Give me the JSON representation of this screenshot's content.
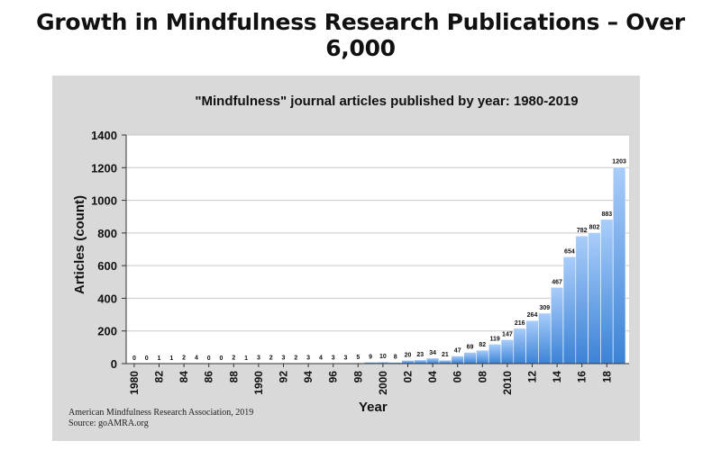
{
  "page_heading": "Growth in Mindfulness Research Publications – Over 6,000",
  "colors": {
    "panel_bg": "#d9d9d9",
    "plot_bg": "#ffffff",
    "bar_top": "#a9cdfa",
    "bar_bottom": "#3b82d6"
  },
  "chart_data": {
    "type": "bar",
    "title": "\"Mindfulness\" journal articles published by year: 1980-2019",
    "xlabel": "Year",
    "ylabel": "Articles (count)",
    "ylim": [
      0,
      1400
    ],
    "yticks": [
      "0",
      "200",
      "400",
      "600",
      "800",
      "1000",
      "1200",
      "1400"
    ],
    "grid": true,
    "categories": [
      1980,
      1981,
      1982,
      1983,
      1984,
      1985,
      1986,
      1987,
      1988,
      1989,
      1990,
      1991,
      1992,
      1993,
      1994,
      1995,
      1996,
      1997,
      1998,
      1999,
      2000,
      2001,
      2002,
      2003,
      2004,
      2005,
      2006,
      2007,
      2008,
      2009,
      2010,
      2011,
      2012,
      2013,
      2014,
      2015,
      2016,
      2017,
      2018,
      2019
    ],
    "values": [
      0,
      0,
      1,
      1,
      2,
      4,
      0,
      0,
      2,
      1,
      3,
      2,
      3,
      2,
      3,
      4,
      3,
      3,
      5,
      9,
      10,
      8,
      20,
      23,
      34,
      21,
      47,
      69,
      82,
      119,
      147,
      216,
      264,
      309,
      467,
      654,
      782,
      802,
      883,
      1203
    ],
    "xtick_labels": [
      "1980",
      "82",
      "84",
      "86",
      "88",
      "1990",
      "92",
      "94",
      "96",
      "98",
      "2000",
      "02",
      "04",
      "06",
      "08",
      "2010",
      "12",
      "14",
      "16",
      "18"
    ]
  },
  "footer": {
    "line1": "American Mindfulness Research Association, 2019",
    "line2": "Source: goAMRA.org"
  }
}
